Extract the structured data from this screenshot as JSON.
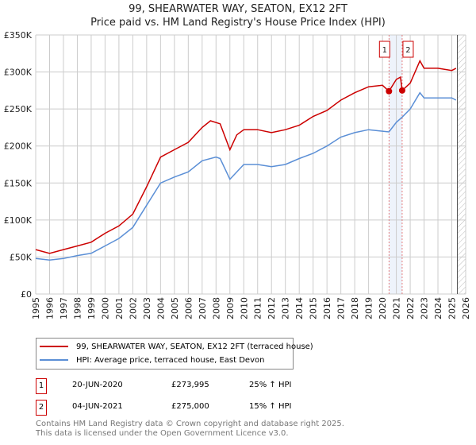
{
  "chart_data": {
    "type": "line",
    "title": "99, SHEARWATER WAY, SEATON, EX12 2FT",
    "subtitle": "Price paid vs. HM Land Registry's House Price Index (HPI)",
    "xlim": [
      1995,
      2026
    ],
    "ylim": [
      0,
      350000
    ],
    "xticks": [
      "1995",
      "1996",
      "1997",
      "1998",
      "1999",
      "2000",
      "2001",
      "2002",
      "2003",
      "2004",
      "2005",
      "2006",
      "2007",
      "2008",
      "2009",
      "2010",
      "2011",
      "2012",
      "2013",
      "2014",
      "2015",
      "2016",
      "2017",
      "2018",
      "2019",
      "2020",
      "2021",
      "2022",
      "2023",
      "2024",
      "2025",
      "2026"
    ],
    "yticks": [
      {
        "v": 0,
        "label": "£0"
      },
      {
        "v": 50000,
        "label": "£50K"
      },
      {
        "v": 100000,
        "label": "£100K"
      },
      {
        "v": 150000,
        "label": "£150K"
      },
      {
        "v": 200000,
        "label": "£200K"
      },
      {
        "v": 250000,
        "label": "£250K"
      },
      {
        "v": 300000,
        "label": "£300K"
      },
      {
        "v": 350000,
        "label": "£350K"
      }
    ],
    "grid": true,
    "series": [
      {
        "name": "99, SHEARWATER WAY, SEATON, EX12 2FT (terraced house)",
        "color": "#cc0000",
        "x": [
          1995,
          1996,
          1997,
          1998,
          1999,
          2000,
          2001,
          2002,
          2003,
          2004,
          2005,
          2006,
          2007,
          2007.6,
          2008.3,
          2009,
          2009.5,
          2010,
          2011,
          2012,
          2013,
          2014,
          2015,
          2016,
          2017,
          2018,
          2019,
          2020,
          2020.47,
          2021,
          2021.3,
          2021.42,
          2022,
          2022.7,
          2023,
          2024,
          2025,
          2025.3
        ],
        "y": [
          60000,
          55000,
          60000,
          65000,
          70000,
          82000,
          92000,
          108000,
          145000,
          185000,
          195000,
          205000,
          225000,
          234000,
          230000,
          195000,
          215000,
          222000,
          222000,
          218000,
          222000,
          228000,
          240000,
          248000,
          262000,
          272000,
          280000,
          282000,
          273995,
          290000,
          293000,
          275000,
          285000,
          315000,
          305000,
          305000,
          302000,
          305000
        ]
      },
      {
        "name": "HPI: Average price, terraced house, East Devon",
        "color": "#5b8fd6",
        "x": [
          1995,
          1996,
          1997,
          1998,
          1999,
          2000,
          2001,
          2002,
          2003,
          2004,
          2005,
          2006,
          2007,
          2008,
          2008.3,
          2009,
          2010,
          2011,
          2012,
          2013,
          2014,
          2015,
          2016,
          2017,
          2018,
          2019,
          2020,
          2020.47,
          2021,
          2021.42,
          2022,
          2022.7,
          2023,
          2024,
          2025,
          2025.3
        ],
        "y": [
          48000,
          46000,
          48000,
          52000,
          55000,
          65000,
          75000,
          90000,
          120000,
          150000,
          158000,
          165000,
          180000,
          185000,
          183000,
          155000,
          175000,
          175000,
          172000,
          175000,
          183000,
          190000,
          200000,
          212000,
          218000,
          222000,
          220000,
          219000,
          232000,
          239000,
          250000,
          272000,
          265000,
          265000,
          265000,
          262000
        ]
      }
    ],
    "sales": [
      {
        "label": "1",
        "x": 2020.47,
        "y": 273995
      },
      {
        "label": "2",
        "x": 2021.42,
        "y": 275000
      }
    ],
    "forecast_start": 2025.4
  },
  "legend": {
    "red": "99, SHEARWATER WAY, SEATON, EX12 2FT (terraced house)",
    "blue": "HPI: Average price, terraced house, East Devon"
  },
  "transactions": [
    {
      "num": "1",
      "date": "20-JUN-2020",
      "price": "£273,995",
      "hpi": "25% ↑ HPI"
    },
    {
      "num": "2",
      "date": "04-JUN-2021",
      "price": "£275,000",
      "hpi": "15% ↑ HPI"
    }
  ],
  "footer": {
    "line1": "Contains HM Land Registry data © Crown copyright and database right 2025.",
    "line2": "This data is licensed under the Open Government Licence v3.0."
  }
}
